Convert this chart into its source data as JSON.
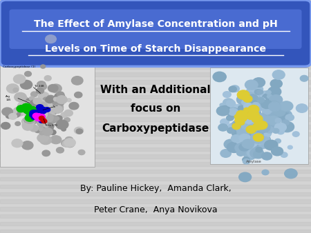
{
  "title_line1": "The Effect of Amylase Concentration and pH",
  "title_line2": "Levels on Time of Starch Disappearance",
  "subtitle_line1": "With an Additional",
  "subtitle_line2": "focus on",
  "subtitle_line3": "Carboxypeptidase",
  "author_line1": "By: Pauline Hickey,  Amanda Clark,",
  "author_line2": "Peter Crane,  Anya Novikova",
  "background_color": "#d4d4d4",
  "stripe_color": "#c4c4c4",
  "title_box_color": "#4466cc",
  "title_text_color": "#ffffff",
  "subtitle_text_color": "#000000",
  "author_text_color": "#000000"
}
